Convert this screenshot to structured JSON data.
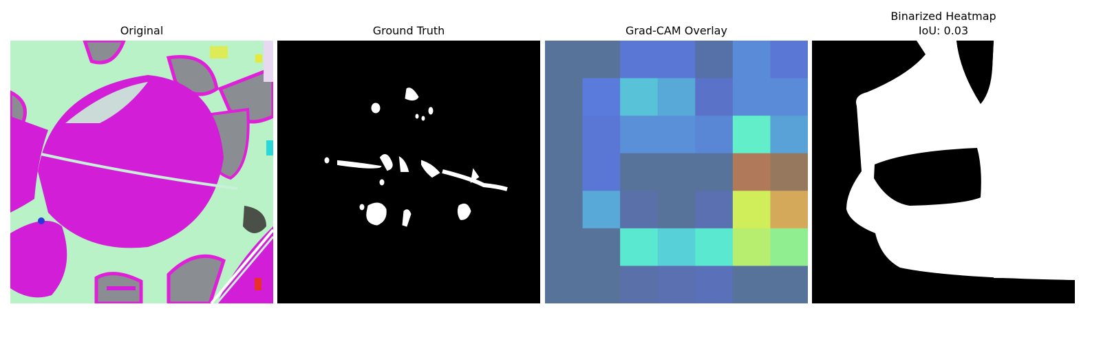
{
  "panels": {
    "original": {
      "title": "Original"
    },
    "ground_truth": {
      "title": "Ground Truth"
    },
    "gradcam": {
      "title": "Grad-CAM Overlay",
      "grid": [
        [
          "#58739a",
          "#58739a",
          "#5b77d6",
          "#5b77d6",
          "#5670a8",
          "#5a8bd8",
          "#5b77d6"
        ],
        [
          "#58739a",
          "#5b7bdc",
          "#58c3d8",
          "#58a8d8",
          "#5a72c8",
          "#5a8bd8",
          "#5a8bd8"
        ],
        [
          "#58739a",
          "#5b77d6",
          "#5a90d8",
          "#5a90d8",
          "#5a86d6",
          "#62eec8",
          "#58a2d8"
        ],
        [
          "#58739a",
          "#5b77d6",
          "#58739a",
          "#58739a",
          "#58739a",
          "#b07a5a",
          "#96785e"
        ],
        [
          "#58739a",
          "#58a8d8",
          "#5a70a8",
          "#58739a",
          "#5a70b0",
          "#d0ee5a",
          "#d4aa5a"
        ],
        [
          "#58739a",
          "#58739a",
          "#5ae8d0",
          "#58d0d8",
          "#5ae8d0",
          "#b8ee70",
          "#90ee90"
        ],
        [
          "#58739a",
          "#58739a",
          "#5a70a8",
          "#5a70b0",
          "#5a70b8",
          "#58739a",
          "#58739a"
        ]
      ]
    },
    "binarized": {
      "title_line1": "Binarized Heatmap",
      "title_line2": "IoU: 0.03"
    }
  },
  "colors": {
    "leaf_magenta": "#d21ed6",
    "background_mint": "#b9f2c6",
    "shadow_gray": "#8a8d92",
    "mask_white": "#ffffff",
    "mask_black": "#000000"
  }
}
